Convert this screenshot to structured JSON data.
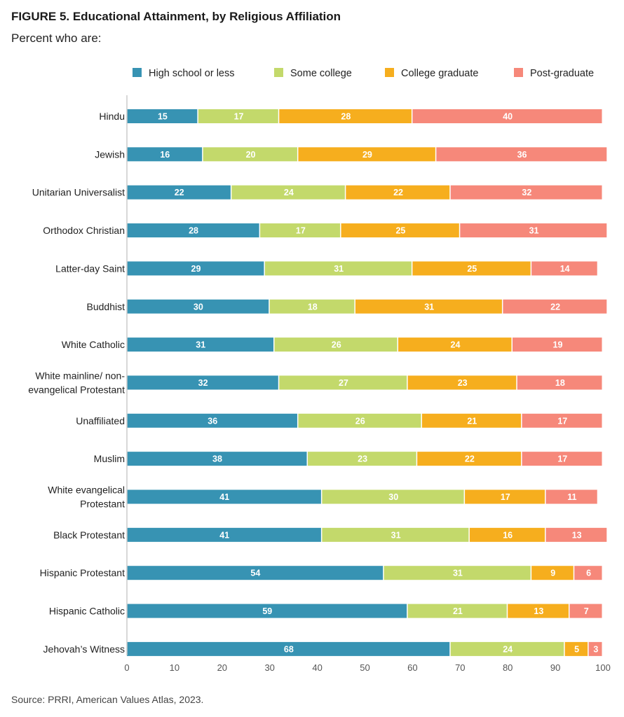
{
  "title": "FIGURE 5. Educational Attainment, by Religious Affiliation",
  "subtitle": "Percent who are:",
  "source": "Source: PRRI, American Values Atlas, 2023.",
  "chart_data": {
    "type": "bar",
    "orientation": "horizontal",
    "stacked": true,
    "xlim": [
      0,
      100
    ],
    "x_ticks": [
      0,
      10,
      20,
      30,
      40,
      50,
      60,
      70,
      80,
      90,
      100
    ],
    "grid": false,
    "legend_position": "top",
    "categories": [
      [
        "Hindu"
      ],
      [
        "Jewish"
      ],
      [
        "Unitarian Universalist"
      ],
      [
        "Orthodox Christian"
      ],
      [
        "Latter-day Saint"
      ],
      [
        "Buddhist"
      ],
      [
        "White Catholic"
      ],
      [
        "White mainline/ non-",
        "evangelical Protestant"
      ],
      [
        "Unaffiliated"
      ],
      [
        "Muslim"
      ],
      [
        "White evangelical",
        "Protestant"
      ],
      [
        "Black Protestant"
      ],
      [
        "Hispanic Protestant"
      ],
      [
        "Hispanic Catholic"
      ],
      [
        "Jehovah’s Witness"
      ]
    ],
    "series": [
      {
        "name": "High school or less",
        "color": "#3793b3",
        "values": [
          15,
          16,
          22,
          28,
          29,
          30,
          31,
          32,
          36,
          38,
          41,
          41,
          54,
          59,
          68
        ]
      },
      {
        "name": "Some college",
        "color": "#c3d96b",
        "values": [
          17,
          20,
          24,
          17,
          31,
          18,
          26,
          27,
          26,
          23,
          30,
          31,
          31,
          21,
          24
        ]
      },
      {
        "name": "College graduate",
        "color": "#f6ae1e",
        "values": [
          28,
          29,
          22,
          25,
          25,
          31,
          24,
          23,
          21,
          22,
          17,
          16,
          9,
          13,
          5
        ]
      },
      {
        "name": "Post-graduate",
        "color": "#f6887a",
        "values": [
          40,
          36,
          32,
          31,
          14,
          22,
          19,
          18,
          17,
          17,
          11,
          13,
          6,
          7,
          3
        ]
      }
    ]
  }
}
